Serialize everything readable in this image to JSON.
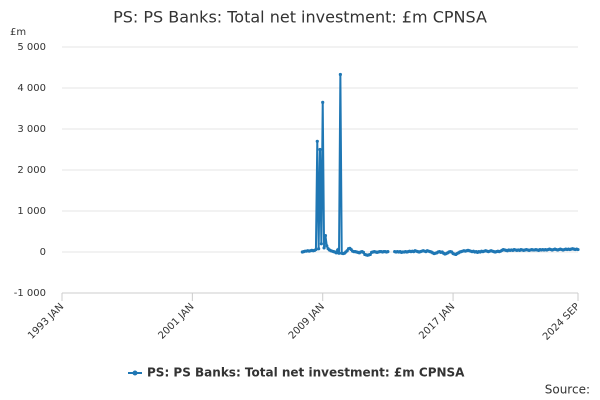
{
  "chart_data": {
    "type": "line",
    "title": "PS: PS Banks: Total net investment: £m CPNSA",
    "y_unit": "£m",
    "source": "Source:",
    "legend_position": "bottom",
    "grid": true,
    "ylim": [
      -1000,
      5000
    ],
    "yticks": [
      {
        "value": -1000,
        "label": "-1 000"
      },
      0,
      {
        "value": 1000,
        "label": "1 000"
      },
      {
        "value": 2000,
        "label": "2 000"
      },
      {
        "value": 3000,
        "label": "3 000"
      },
      {
        "value": 4000,
        "label": "4 000"
      },
      {
        "value": 5000,
        "label": "5 000"
      }
    ],
    "xlim": [
      "1993 JAN",
      "2024 SEP"
    ],
    "xticks": [
      "1993 JAN",
      "2001 JAN",
      "2009 JAN",
      "2017 JAN",
      "2024 SEP"
    ],
    "x": [
      "2007 OCT",
      "2007 NOV",
      "2007 DEC",
      "2008 JAN",
      "2008 FEB",
      "2008 MAR",
      "2008 APR",
      "2008 MAY",
      "2008 JUN",
      "2008 JUL",
      "2008 AUG",
      "2008 SEP",
      "2008 OCT",
      "2008 NOV",
      "2008 DEC",
      "2009 JAN",
      "2009 FEB",
      "2009 MAR",
      "2009 APR",
      "2009 MAY",
      "2009 JUN",
      "2009 JUL",
      "2009 AUG",
      "2009 SEP",
      "2009 OCT",
      "2009 NOV",
      "2009 DEC",
      "2010 JAN",
      "2010 FEB",
      "2010 MAR",
      "2010 APR",
      "2010 MAY",
      "2010 JUN",
      "2010 JUL",
      "2010 AUG",
      "2010 SEP",
      "2010 OCT",
      "2010 NOV",
      "2010 DEC",
      "2011 JAN",
      "2011 FEB",
      "2011 MAR",
      "2011 APR",
      "2011 MAY",
      "2011 JUN",
      "2011 JUL",
      "2011 AUG",
      "2011 SEP",
      "2011 OCT",
      "2011 NOV",
      "2011 DEC",
      "2012 JAN",
      "2012 FEB",
      "2012 MAR",
      "2012 APR",
      "2012 MAY",
      "2012 JUN",
      "2012 JUL",
      "2012 AUG",
      "2012 SEP",
      "2012 OCT",
      "2012 NOV",
      "2012 DEC",
      "2013 JAN",
      "2013 FEB",
      "2013 MAR",
      "2013 APR",
      "2013 MAY",
      "2013 JUN",
      "2013 JUL",
      "2013 AUG",
      "2013 SEP",
      "2013 OCT",
      "2013 NOV",
      "2013 DEC",
      "2014 JAN",
      "2014 FEB",
      "2014 MAR",
      "2014 APR",
      "2014 MAY",
      "2014 JUN",
      "2014 JUL",
      "2014 AUG",
      "2014 SEP",
      "2014 OCT",
      "2014 NOV",
      "2014 DEC",
      "2015 JAN",
      "2015 FEB",
      "2015 MAR",
      "2015 APR",
      "2015 MAY",
      "2015 JUN",
      "2015 JUL",
      "2015 AUG",
      "2015 SEP",
      "2015 OCT",
      "2015 NOV",
      "2015 DEC",
      "2016 JAN",
      "2016 FEB",
      "2016 MAR",
      "2016 APR",
      "2016 MAY",
      "2016 JUN",
      "2016 JUL",
      "2016 AUG",
      "2016 SEP",
      "2016 OCT",
      "2016 NOV",
      "2016 DEC",
      "2017 JAN",
      "2017 FEB",
      "2017 MAR",
      "2017 APR",
      "2017 MAY",
      "2017 JUN",
      "2017 JUL",
      "2017 AUG",
      "2017 SEP",
      "2017 OCT",
      "2017 NOV",
      "2017 DEC",
      "2018 JAN",
      "2018 FEB",
      "2018 MAR",
      "2018 APR",
      "2018 MAY",
      "2018 JUN",
      "2018 JUL",
      "2018 AUG",
      "2018 SEP",
      "2018 OCT",
      "2018 NOV",
      "2018 DEC",
      "2019 JAN",
      "2019 FEB",
      "2019 MAR",
      "2019 APR",
      "2019 MAY",
      "2019 JUN",
      "2019 JUL",
      "2019 AUG",
      "2019 SEP",
      "2019 OCT",
      "2019 NOV",
      "2019 DEC",
      "2020 JAN",
      "2020 FEB",
      "2020 MAR",
      "2020 APR",
      "2020 MAY",
      "2020 JUN",
      "2020 JUL",
      "2020 AUG",
      "2020 SEP",
      "2020 OCT",
      "2020 NOV",
      "2020 DEC",
      "2021 JAN",
      "2021 FEB",
      "2021 MAR",
      "2021 APR",
      "2021 MAY",
      "2021 JUN",
      "2021 JUL",
      "2021 AUG",
      "2021 SEP",
      "2021 OCT",
      "2021 NOV",
      "2021 DEC",
      "2022 JAN",
      "2022 FEB",
      "2022 MAR",
      "2022 APR",
      "2022 MAY",
      "2022 JUN",
      "2022 JUL",
      "2022 AUG",
      "2022 SEP",
      "2022 OCT",
      "2022 NOV",
      "2022 DEC",
      "2023 JAN",
      "2023 FEB",
      "2023 MAR",
      "2023 APR",
      "2023 MAY",
      "2023 JUN",
      "2023 JUL",
      "2023 AUG",
      "2023 SEP",
      "2023 OCT",
      "2023 NOV",
      "2023 DEC",
      "2024 JAN",
      "2024 FEB",
      "2024 MAR",
      "2024 APR",
      "2024 MAY",
      "2024 JUN",
      "2024 JUL",
      "2024 AUG",
      "2024 SEP"
    ],
    "series": [
      {
        "name": "PS: PS Banks: Total net investment: £m CPNSA",
        "color": "#1f77b4",
        "values": [
          0,
          10,
          20,
          20,
          30,
          20,
          30,
          40,
          30,
          40,
          60,
          2700,
          80,
          2500,
          200,
          3650,
          100,
          400,
          150,
          80,
          50,
          30,
          20,
          10,
          0,
          -20,
          50,
          -30,
          4330,
          -30,
          -40,
          -30,
          0,
          30,
          80,
          90,
          60,
          20,
          10,
          10,
          0,
          -10,
          -20,
          0,
          10,
          -10,
          -60,
          -70,
          -80,
          -70,
          -60,
          -10,
          0,
          10,
          0,
          -10,
          0,
          10,
          10,
          0,
          10,
          10,
          0,
          10,
          null,
          null,
          null,
          null,
          10,
          0,
          10,
          0,
          10,
          -10,
          0,
          0,
          10,
          0,
          10,
          20,
          10,
          20,
          10,
          30,
          20,
          10,
          0,
          10,
          20,
          30,
          20,
          10,
          30,
          20,
          10,
          0,
          -20,
          -40,
          -30,
          -20,
          0,
          10,
          -10,
          0,
          -30,
          -50,
          -40,
          -20,
          0,
          10,
          0,
          -40,
          -50,
          -60,
          -40,
          -20,
          0,
          10,
          20,
          30,
          20,
          30,
          40,
          30,
          20,
          10,
          20,
          0,
          10,
          -10,
          10,
          0,
          20,
          10,
          20,
          30,
          20,
          10,
          20,
          30,
          20,
          10,
          0,
          10,
          20,
          10,
          20,
          40,
          60,
          50,
          40,
          30,
          50,
          40,
          50,
          40,
          60,
          50,
          40,
          50,
          40,
          60,
          50,
          40,
          50,
          60,
          50,
          40,
          50,
          60,
          50,
          50,
          60,
          50,
          40,
          60,
          50,
          60,
          50,
          60,
          50,
          60,
          70,
          60,
          50,
          60,
          70,
          60,
          50,
          60,
          70,
          60,
          50,
          60,
          70,
          60,
          70,
          60,
          70,
          80,
          70,
          60,
          70,
          60
        ]
      }
    ]
  }
}
